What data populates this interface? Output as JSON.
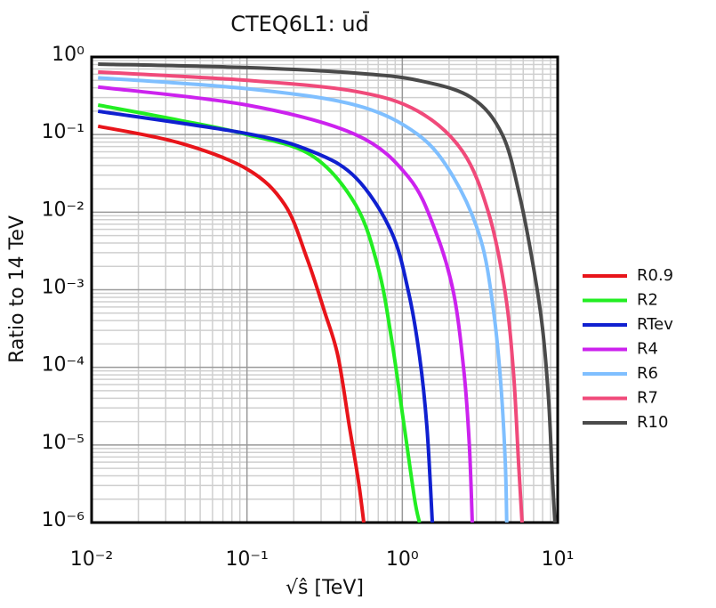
{
  "chart_data": {
    "type": "line",
    "title": "CTEQ6L1: ud̄",
    "x_label": "√ŝ [TeV]",
    "y_label": "Ratio to 14 TeV",
    "log_x": true,
    "log_y": true,
    "grid": true,
    "minor_grid": true,
    "legend": "right",
    "xlim": [
      0.01,
      10
    ],
    "ylim": [
      1e-06,
      1
    ],
    "xticks": [
      {
        "value": 0.01,
        "label": "10⁻²"
      },
      {
        "value": 0.1,
        "label": "10⁻¹"
      },
      {
        "value": 1,
        "label": "10⁰"
      },
      {
        "value": 10,
        "label": "10¹"
      }
    ],
    "yticks": [
      {
        "value": 1e-06,
        "label": "10⁻⁶"
      },
      {
        "value": 1e-05,
        "label": "10⁻⁵"
      },
      {
        "value": 0.0001,
        "label": "10⁻⁴"
      },
      {
        "value": 0.001,
        "label": "10⁻³"
      },
      {
        "value": 0.01,
        "label": "10⁻²"
      },
      {
        "value": 0.1,
        "label": "10⁻¹"
      },
      {
        "value": 1,
        "label": "10⁰"
      }
    ],
    "series": [
      {
        "name": "R0.9",
        "color": "#e8141a",
        "x": [
          0.011,
          0.036,
          0.1,
          0.175,
          0.243,
          0.316,
          0.385,
          0.457,
          0.521,
          0.565
        ],
        "values": [
          0.128,
          0.079,
          0.036,
          0.0125,
          0.00256,
          0.00052,
          0.00014,
          1.7e-05,
          3.5e-06,
          1e-06
        ]
      },
      {
        "name": "R2",
        "color": "#22ee22",
        "x": [
          0.011,
          0.036,
          0.1,
          0.26,
          0.5,
          0.7,
          0.85,
          1.03,
          1.2,
          1.29
        ],
        "values": [
          0.24,
          0.154,
          0.1,
          0.054,
          0.0125,
          0.0019,
          0.00024,
          1.7e-05,
          2e-06,
          1e-06
        ]
      },
      {
        "name": "RTev",
        "color": "#1020d0",
        "x": [
          0.011,
          0.1,
          0.26,
          0.5,
          0.85,
          1.1,
          1.29,
          1.44,
          1.56
        ],
        "values": [
          0.2,
          0.103,
          0.061,
          0.028,
          0.0056,
          0.0009,
          0.00014,
          1.7e-05,
          1e-06
        ]
      },
      {
        "name": "R4",
        "color": "#cc22ee",
        "x": [
          0.011,
          0.1,
          0.5,
          1.1,
          1.64,
          2.14,
          2.5,
          2.7,
          2.82
        ],
        "values": [
          0.41,
          0.24,
          0.1,
          0.028,
          0.0056,
          0.0009,
          8.3e-05,
          1e-05,
          1e-06
        ]
      },
      {
        "name": "R6",
        "color": "#7fbfff",
        "x": [
          0.011,
          0.1,
          0.5,
          1.26,
          2.14,
          3.2,
          3.87,
          4.3,
          4.6,
          4.7
        ],
        "values": [
          0.54,
          0.39,
          0.24,
          0.1,
          0.028,
          0.0044,
          0.00052,
          6.3e-05,
          5.9e-06,
          1e-06
        ]
      },
      {
        "name": "R7",
        "color": "#f04a7a",
        "x": [
          0.011,
          0.1,
          0.5,
          1.26,
          2.44,
          3.6,
          4.6,
          5.2,
          5.6,
          5.9
        ],
        "values": [
          0.64,
          0.5,
          0.36,
          0.2,
          0.061,
          0.0096,
          0.0009,
          8.3e-05,
          5.9e-06,
          1e-06
        ]
      },
      {
        "name": "R10",
        "color": "#4a4a4a",
        "x": [
          0.011,
          0.1,
          0.5,
          1.26,
          2.78,
          4.4,
          5.7,
          7.0,
          8.0,
          8.75,
          9.2,
          9.6
        ],
        "values": [
          0.81,
          0.73,
          0.62,
          0.5,
          0.3,
          0.1,
          0.016,
          0.0019,
          0.00031,
          3.7e-05,
          4.6e-06,
          1e-06
        ]
      }
    ]
  }
}
